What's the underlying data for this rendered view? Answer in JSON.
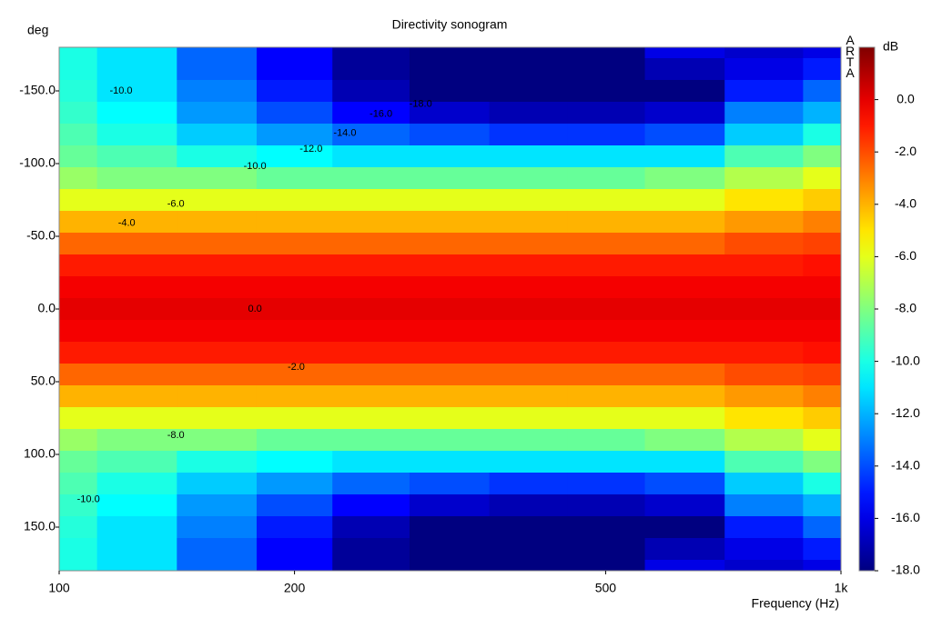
{
  "chart_data": {
    "type": "heatmap",
    "title": "Directivity sonogram",
    "y_label": "deg",
    "x_label": "Frequency (Hz)",
    "colorbar_label": "dB",
    "watermark": "ARTA",
    "colormap": "jet",
    "x_scale": "log",
    "x": [
      100,
      125,
      160,
      200,
      250,
      315,
      400,
      500,
      630,
      800,
      1000
    ],
    "y": [
      -180,
      -165,
      -150,
      -135,
      -120,
      -105,
      -90,
      -75,
      -60,
      -45,
      -30,
      -15,
      0,
      15,
      30,
      45,
      60,
      75,
      90,
      105,
      120,
      135,
      150,
      165,
      180
    ],
    "z": [
      [
        -10,
        -11,
        -13.5,
        -15.5,
        -17.5,
        -18,
        -18,
        -18,
        -16,
        -16.5,
        -16
      ],
      [
        -10,
        -11,
        -13.5,
        -15.5,
        -17.5,
        -18,
        -18,
        -18,
        -17,
        -16,
        -15
      ],
      [
        -9.8,
        -11,
        -13,
        -15,
        -17,
        -18,
        -18,
        -18,
        -18,
        -15,
        -13.5
      ],
      [
        -9.5,
        -10.5,
        -12.5,
        -14,
        -15.5,
        -16.5,
        -17,
        -17,
        -16.5,
        -13,
        -12
      ],
      [
        -9,
        -10,
        -11.5,
        -12.5,
        -13.5,
        -14,
        -14.5,
        -14.5,
        -14,
        -11.5,
        -10
      ],
      [
        -8.5,
        -9,
        -10,
        -10.5,
        -11,
        -11,
        -11,
        -11,
        -11,
        -9,
        -8
      ],
      [
        -7.5,
        -8,
        -8,
        -8.5,
        -8.5,
        -8.5,
        -8.5,
        -8.5,
        -8,
        -7,
        -6
      ],
      [
        -6,
        -6,
        -6,
        -6,
        -6,
        -6,
        -6,
        -6,
        -6,
        -5,
        -4.5
      ],
      [
        -4,
        -4,
        -4,
        -4,
        -4,
        -4,
        -4,
        -4,
        -4,
        -3.5,
        -3
      ],
      [
        -2.5,
        -2.5,
        -2.5,
        -2.5,
        -2.5,
        -2.5,
        -2.5,
        -2.5,
        -2.5,
        -2,
        -1.8
      ],
      [
        -1,
        -1,
        -1,
        -1,
        -1,
        -1,
        -1,
        -1,
        -1,
        -1,
        -0.8
      ],
      [
        -0.3,
        -0.3,
        -0.3,
        -0.3,
        -0.3,
        -0.3,
        -0.3,
        -0.3,
        -0.3,
        -0.3,
        -0.3
      ],
      [
        0,
        0,
        0,
        0,
        0,
        0,
        0,
        0,
        0,
        0,
        0
      ],
      [
        -0.3,
        -0.3,
        -0.3,
        -0.3,
        -0.3,
        -0.3,
        -0.3,
        -0.3,
        -0.3,
        -0.3,
        -0.3
      ],
      [
        -1,
        -1,
        -1,
        -1,
        -1,
        -1,
        -1,
        -1,
        -1,
        -1,
        -0.8
      ],
      [
        -2.5,
        -2.5,
        -2.5,
        -2.5,
        -2.5,
        -2.5,
        -2.5,
        -2.5,
        -2.5,
        -2,
        -1.8
      ],
      [
        -4,
        -4,
        -4,
        -4,
        -4,
        -4,
        -4,
        -4,
        -4,
        -3.5,
        -3
      ],
      [
        -6,
        -6,
        -6,
        -6,
        -6,
        -6,
        -6,
        -6,
        -6,
        -5,
        -4.5
      ],
      [
        -7.5,
        -8,
        -8,
        -8.5,
        -8.5,
        -8.5,
        -8.5,
        -8.5,
        -8,
        -7,
        -6
      ],
      [
        -8.5,
        -9,
        -10,
        -10.5,
        -11,
        -11,
        -11,
        -11,
        -11,
        -9,
        -8
      ],
      [
        -9,
        -10,
        -11.5,
        -12.5,
        -13.5,
        -14,
        -14.5,
        -14.5,
        -14,
        -11.5,
        -10
      ],
      [
        -9.5,
        -10.5,
        -12.5,
        -14,
        -15.5,
        -16.5,
        -17,
        -17,
        -16.5,
        -13,
        -12
      ],
      [
        -9.8,
        -11,
        -13,
        -15,
        -17,
        -18,
        -18,
        -18,
        -18,
        -15,
        -13.5
      ],
      [
        -10,
        -11,
        -13.5,
        -15.5,
        -17.5,
        -18,
        -18,
        -18,
        -17,
        -16,
        -15
      ],
      [
        -10,
        -11,
        -13.5,
        -15.5,
        -17.5,
        -18,
        -18,
        -18,
        -16,
        -16.5,
        -16
      ]
    ],
    "xlim": [
      100,
      1000
    ],
    "xticks": [
      100,
      200,
      500,
      {
        "value": 1000,
        "label": "1k"
      }
    ],
    "ylim": [
      -180,
      180
    ],
    "yticks": [
      {
        "value": -150,
        "label": "-150.0"
      },
      {
        "value": -100,
        "label": "-100.0"
      },
      {
        "value": -50,
        "label": "-50.0"
      },
      {
        "value": 0,
        "label": "0.0"
      },
      {
        "value": 50,
        "label": "50.0"
      },
      {
        "value": 100,
        "label": "100.0"
      },
      {
        "value": 150,
        "label": "150.0"
      }
    ],
    "zlim": [
      -18,
      2
    ],
    "zticks": [
      {
        "value": 0,
        "label": "0.0"
      },
      {
        "value": -2,
        "label": "-2.0"
      },
      {
        "value": -4,
        "label": "-4.0"
      },
      {
        "value": -6,
        "label": "-6.0"
      },
      {
        "value": -8,
        "label": "-8.0"
      },
      {
        "value": -10,
        "label": "-10.0"
      },
      {
        "value": -12,
        "label": "-12.0"
      },
      {
        "value": -14,
        "label": "-14.0"
      },
      {
        "value": -16,
        "label": "-16.0"
      },
      {
        "value": -18,
        "label": "-18.0"
      }
    ],
    "contour_labels": [
      {
        "x": 120,
        "y": -150,
        "value": -10,
        "label": "-10.0"
      },
      {
        "x": 290,
        "y": -141,
        "value": -18,
        "label": "-18.0"
      },
      {
        "x": 258,
        "y": -134,
        "value": -16,
        "label": "-16.0"
      },
      {
        "x": 232,
        "y": -121,
        "value": -14,
        "label": "-14.0"
      },
      {
        "x": 210,
        "y": -110,
        "value": -12,
        "label": "-12.0"
      },
      {
        "x": 178,
        "y": -98,
        "value": -10,
        "label": "-10.0"
      },
      {
        "x": 141,
        "y": -72,
        "value": -6,
        "label": "-6.0"
      },
      {
        "x": 122,
        "y": -59,
        "value": -4,
        "label": "-4.0"
      },
      {
        "x": 178,
        "y": 0,
        "value": 0,
        "label": "0.0"
      },
      {
        "x": 201,
        "y": 40,
        "value": -2,
        "label": "-2.0"
      },
      {
        "x": 141,
        "y": 87,
        "value": -8,
        "label": "-8.0"
      },
      {
        "x": 109,
        "y": 131,
        "value": -10,
        "label": "-10.0"
      }
    ]
  }
}
